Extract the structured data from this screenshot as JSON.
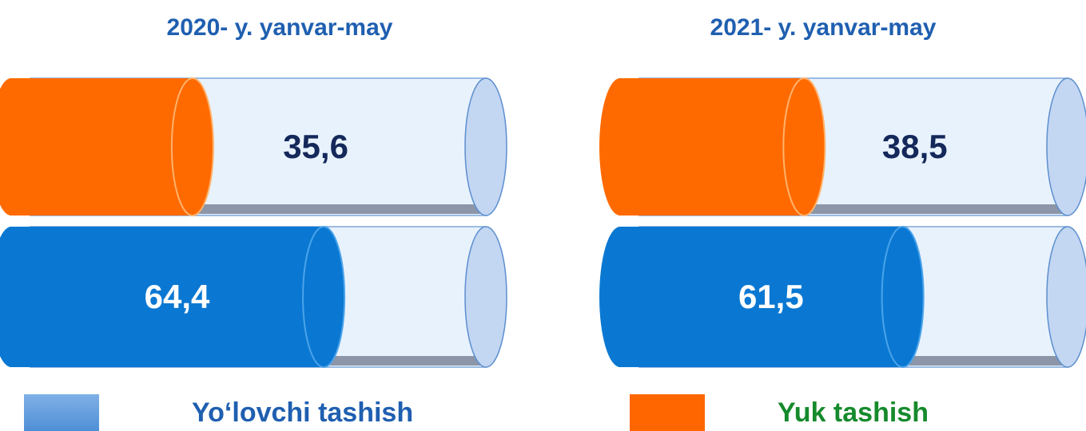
{
  "chart_data": [
    {
      "type": "bar",
      "title": "2020- y. yanvar-may",
      "categories": [
        "Yuk tashish",
        "Yo‘lovchi tashish"
      ],
      "values": [
        35.6,
        64.4
      ],
      "labels": [
        "35,6",
        "64,4"
      ],
      "ylim": [
        0,
        100
      ]
    },
    {
      "type": "bar",
      "title": "2021- y. yanvar-may",
      "categories": [
        "Yuk tashish",
        "Yo‘lovchi tashish"
      ],
      "values": [
        38.5,
        61.5
      ],
      "labels": [
        "38,5",
        "61,5"
      ],
      "ylim": [
        0,
        100
      ]
    }
  ],
  "legend": [
    {
      "label": "Yo‘lovchi tashish",
      "color": "#0a78d2"
    },
    {
      "label": "Yuk tashish",
      "color": "#ff6a00"
    }
  ],
  "colors": {
    "cylinder_empty": "#e8f2fd",
    "cylinder_end": "#c3d6f2",
    "title": "#1f5fb0",
    "label_dark": "#14285a",
    "label_light": "#ffffff"
  }
}
